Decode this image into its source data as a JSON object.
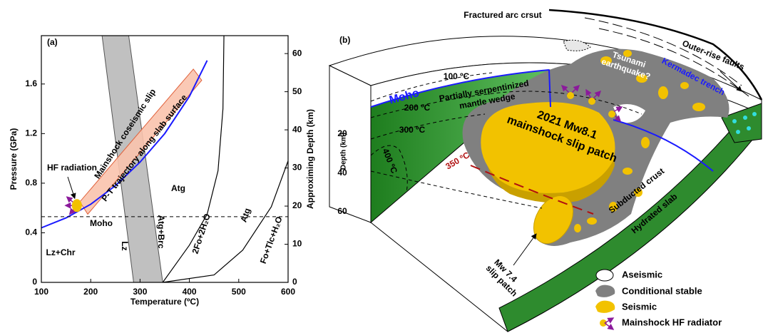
{
  "chart_data": {
    "type": "line",
    "panel_label": "(a)",
    "x_label": "Temperature (ºC)",
    "y_label": "Pressure (GPa)",
    "y2_label": "Approximing Depth (km)",
    "xlim": [
      100,
      600
    ],
    "xticks": [
      100,
      200,
      300,
      400,
      500,
      600
    ],
    "ylim": [
      0,
      1.99
    ],
    "yticks": [
      0,
      0.4,
      0.8,
      1.2,
      1.6
    ],
    "y2lim": [
      0,
      64.7
    ],
    "y2ticks": [
      0,
      10,
      20,
      30,
      40,
      50,
      60
    ],
    "series": [
      {
        "name": "P-T trajectory along slab surface",
        "color": "#1a1aff",
        "x": [
          100,
          150,
          200,
          250,
          300,
          350,
          400,
          436
        ],
        "values": [
          0.44,
          0.52,
          0.63,
          0.78,
          0.97,
          1.2,
          1.5,
          1.79
        ]
      }
    ],
    "curves": [
      {
        "color": "#000000",
        "x": [
          346,
          400,
          436,
          458,
          468,
          470
        ],
        "values": [
          0,
          0.3,
          0.55,
          0.9,
          1.4,
          1.99
        ]
      },
      {
        "color": "#000000",
        "x": [
          346,
          450,
          508,
          566,
          600
        ],
        "values": [
          0,
          0.06,
          0.26,
          0.61,
          0.98
        ]
      }
    ],
    "stability_band": {
      "color": "#c0c0c0",
      "x": [
        223,
        277,
        346,
        287
      ],
      "values": [
        1.99,
        1.99,
        0,
        0
      ]
    },
    "slip_region": {
      "name": "Mainshock coseismic slip",
      "color": "#f9c3ad",
      "x": [
        178,
        194,
        425,
        408
      ],
      "values": [
        0.65,
        0.55,
        1.63,
        1.72
      ]
    },
    "hf_radiator": {
      "name": "HF radiation",
      "color": "#f2c100",
      "x": 172,
      "value": 0.62
    },
    "moho": {
      "name": "Moho",
      "value": 0.53
    },
    "annotations": [
      "Atg",
      "Atg+Brc",
      "2Fo+2H₂O",
      "Atg",
      "Fo+Tlc+H₂O",
      "Lz+Chr",
      "Lz"
    ]
  },
  "panel_b": {
    "panel_label": "(b)",
    "labels": {
      "fractured_arc_crust": "Fractured arc crsut",
      "tsunami": [
        "Tsunami",
        "earthquake?"
      ],
      "outer_rise": "Outer-rise faults",
      "trench": "Kermadec trench",
      "moho": "Moho",
      "wedge": [
        "Partially serpentinized",
        "mantle wedge"
      ],
      "mainshock": [
        "2021 Mw8.1",
        "mainshock slip patch"
      ],
      "subducted_crust": "Subducted crust",
      "hydrated_slab": "Hydrated slab",
      "aftershock": [
        "Mw 7.4",
        "slip patch"
      ]
    },
    "isotherms": [
      "100 ºC",
      "200 ºC",
      "300 ºC",
      "400 ºC",
      "350 ºC"
    ],
    "depth_axis": {
      "label": "Depth (km)",
      "ticks": [
        "20",
        "40",
        "60"
      ]
    },
    "legend": [
      "Aseismic",
      "Conditional stable",
      "Seismic",
      "Mainshock HF radiator"
    ]
  }
}
